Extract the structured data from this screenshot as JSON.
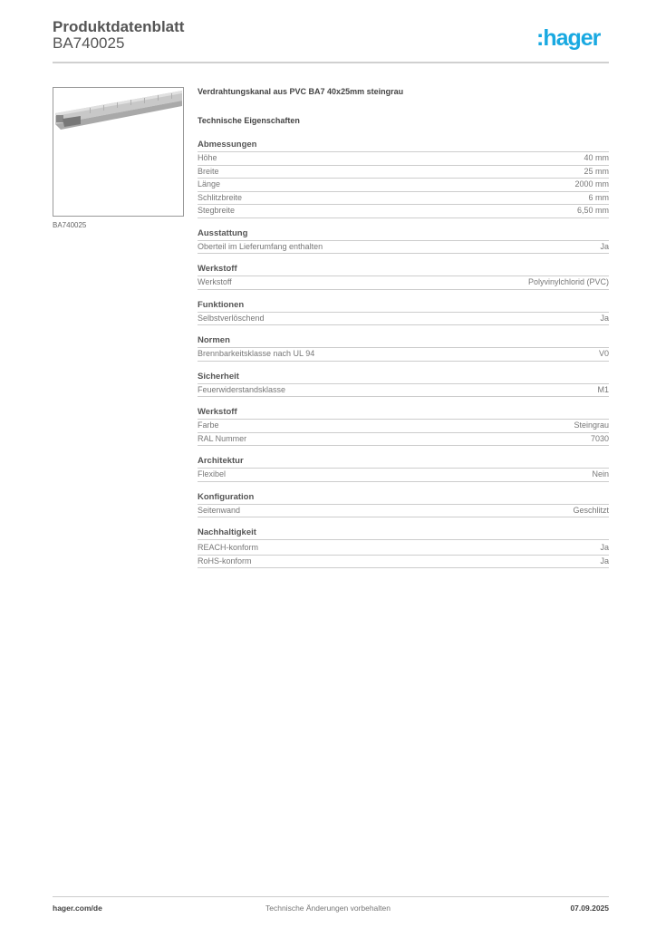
{
  "header": {
    "title": "Produktdatenblatt",
    "article": "BA740025",
    "logo": ":hager",
    "brand_color": "#19a9e1"
  },
  "product": {
    "image_caption": "BA740025",
    "name": "Verdrahtungskanal aus PVC BA7 40x25mm steingrau",
    "section_title": "Technische Eigenschaften"
  },
  "sections": [
    {
      "title": "Abmessungen",
      "rows": [
        {
          "label": "Höhe",
          "value": "40 mm"
        },
        {
          "label": "Breite",
          "value": "25 mm"
        },
        {
          "label": "Länge",
          "value": "2000 mm"
        },
        {
          "label": "Schlitzbreite",
          "value": "6 mm"
        },
        {
          "label": "Stegbreite",
          "value": "6,50 mm"
        }
      ]
    },
    {
      "title": "Ausstattung",
      "rows": [
        {
          "label": "Oberteil im Lieferumfang enthalten",
          "value": "Ja"
        }
      ]
    },
    {
      "title": "Werkstoff",
      "rows": [
        {
          "label": "Werkstoff",
          "value": "Polyvinylchlorid (PVC)"
        }
      ]
    },
    {
      "title": "Funktionen",
      "rows": [
        {
          "label": "Selbstverlöschend",
          "value": "Ja"
        }
      ]
    },
    {
      "title": "Normen",
      "rows": [
        {
          "label": "Brennbarkeitsklasse nach UL 94",
          "value": "V0"
        }
      ]
    },
    {
      "title": "Sicherheit",
      "rows": [
        {
          "label": "Feuerwiderstandsklasse",
          "value": "M1"
        }
      ]
    },
    {
      "title": "Werkstoff",
      "rows": [
        {
          "label": "Farbe",
          "value": "Steingrau"
        },
        {
          "label": "RAL Nummer",
          "value": "7030"
        }
      ]
    },
    {
      "title": "Architektur",
      "rows": [
        {
          "label": "Flexibel",
          "value": "Nein"
        }
      ]
    },
    {
      "title": "Konfiguration",
      "rows": [
        {
          "label": "Seitenwand",
          "value": "Geschlitzt"
        }
      ]
    },
    {
      "title": "Nachhaltigkeit",
      "rows": [
        {
          "label": "REACH-konform",
          "value": "Ja"
        },
        {
          "label": "RoHS-konform",
          "value": "Ja"
        }
      ]
    }
  ],
  "footer": {
    "website": "hager.com/de",
    "note": "Technische Änderungen vorbehalten",
    "date": "07.09.2025"
  }
}
